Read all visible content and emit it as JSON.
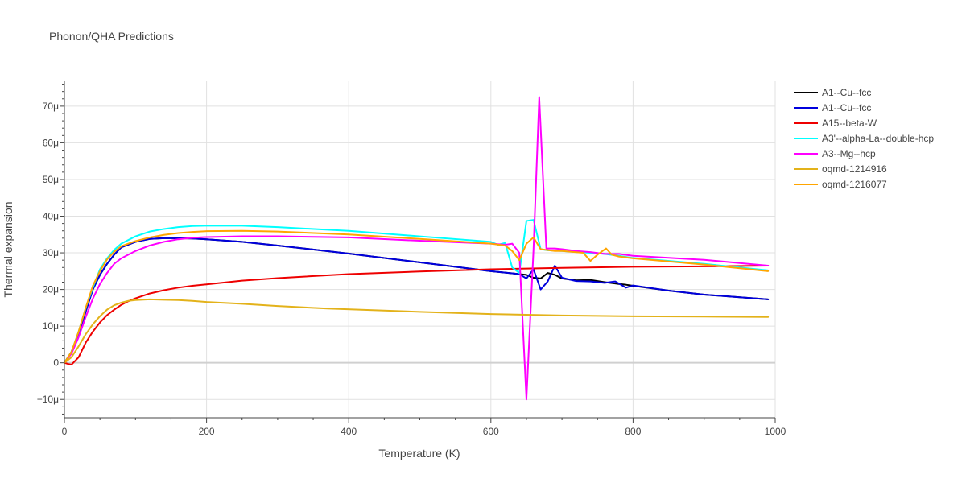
{
  "chart_data": {
    "type": "line",
    "title": "Phonon/QHA Predictions",
    "xlabel": "Temperature (K)",
    "ylabel": "Thermal expansion",
    "xlim": [
      0,
      1000
    ],
    "ylim": [
      -1.5e-05,
      7.7e-05
    ],
    "grid": true,
    "legend_position": "right",
    "x_ticks": [
      {
        "value": 0,
        "label": "0"
      },
      {
        "value": 200,
        "label": "200"
      },
      {
        "value": 400,
        "label": "400"
      },
      {
        "value": 600,
        "label": "600"
      },
      {
        "value": 800,
        "label": "800"
      },
      {
        "value": 1000,
        "label": "1000"
      }
    ],
    "y_ticks": [
      {
        "value": -1e-05,
        "label": "−10μ"
      },
      {
        "value": 0,
        "label": "0"
      },
      {
        "value": 1e-05,
        "label": "10μ"
      },
      {
        "value": 2e-05,
        "label": "20μ"
      },
      {
        "value": 3e-05,
        "label": "30μ"
      },
      {
        "value": 4e-05,
        "label": "40μ"
      },
      {
        "value": 5e-05,
        "label": "50μ"
      },
      {
        "value": 6e-05,
        "label": "60μ"
      },
      {
        "value": 7e-05,
        "label": "70μ"
      }
    ],
    "series": [
      {
        "name": "A1--Cu--fcc",
        "color": "#000000",
        "x": [
          0,
          10,
          20,
          30,
          40,
          50,
          60,
          70,
          80,
          100,
          120,
          140,
          160,
          180,
          200,
          250,
          300,
          400,
          500,
          600,
          640,
          650,
          660,
          670,
          680,
          690,
          700,
          720,
          740,
          760,
          780,
          790,
          800,
          850,
          900,
          990
        ],
        "y": [
          0,
          3e-06,
          8e-06,
          1.4e-05,
          2e-05,
          2.4e-05,
          2.7e-05,
          2.95e-05,
          3.15e-05,
          3.3e-05,
          3.38e-05,
          3.4e-05,
          3.4e-05,
          3.39e-05,
          3.37e-05,
          3.3e-05,
          3.2e-05,
          2.98e-05,
          2.74e-05,
          2.5e-05,
          2.42e-05,
          2.4e-05,
          2.32e-05,
          2.3e-05,
          2.45e-05,
          2.4e-05,
          2.3e-05,
          2.25e-05,
          2.26e-05,
          2.2e-05,
          2.15e-05,
          2.13e-05,
          2.1e-05,
          1.97e-05,
          1.86e-05,
          1.73e-05
        ]
      },
      {
        "name": "A1--Cu--fcc",
        "color": "#0000dd",
        "x": [
          0,
          10,
          20,
          30,
          40,
          50,
          60,
          70,
          80,
          100,
          120,
          140,
          160,
          180,
          200,
          250,
          300,
          400,
          500,
          600,
          640,
          650,
          660,
          670,
          680,
          690,
          700,
          720,
          740,
          760,
          775,
          790,
          800,
          850,
          900,
          990
        ],
        "y": [
          0,
          3e-06,
          8e-06,
          1.4e-05,
          2e-05,
          2.4e-05,
          2.7e-05,
          2.95e-05,
          3.15e-05,
          3.3e-05,
          3.38e-05,
          3.4e-05,
          3.4e-05,
          3.39e-05,
          3.37e-05,
          3.3e-05,
          3.2e-05,
          2.98e-05,
          2.74e-05,
          2.5e-05,
          2.42e-05,
          2.3e-05,
          2.55e-05,
          2e-05,
          2.22e-05,
          2.65e-05,
          2.32e-05,
          2.23e-05,
          2.22e-05,
          2.18e-05,
          2.22e-05,
          2.05e-05,
          2.11e-05,
          1.97e-05,
          1.86e-05,
          1.73e-05
        ]
      },
      {
        "name": "A15--beta-W",
        "color": "#ee0000",
        "x": [
          0,
          5,
          10,
          20,
          30,
          40,
          50,
          60,
          70,
          80,
          90,
          100,
          120,
          140,
          160,
          180,
          200,
          250,
          300,
          400,
          500,
          600,
          700,
          800,
          900,
          990
        ],
        "y": [
          0,
          -3e-07,
          -5e-07,
          1.5e-06,
          5.5e-06,
          8.5e-06,
          1.1e-05,
          1.3e-05,
          1.45e-05,
          1.58e-05,
          1.68e-05,
          1.76e-05,
          1.89e-05,
          1.98e-05,
          2.05e-05,
          2.1e-05,
          2.14e-05,
          2.24e-05,
          2.31e-05,
          2.42e-05,
          2.49e-05,
          2.55e-05,
          2.59e-05,
          2.62e-05,
          2.63e-05,
          2.65e-05
        ]
      },
      {
        "name": "A3'--alpha-La--double-hcp",
        "color": "#00ffff",
        "x": [
          0,
          10,
          20,
          30,
          40,
          50,
          60,
          70,
          80,
          100,
          120,
          140,
          160,
          180,
          200,
          250,
          300,
          400,
          500,
          600,
          610,
          620,
          630,
          640,
          650,
          660,
          670,
          680,
          700,
          720,
          740,
          760,
          780,
          800,
          900,
          990
        ],
        "y": [
          0,
          3e-06,
          8.5e-06,
          1.5e-05,
          2.05e-05,
          2.55e-05,
          2.85e-05,
          3.08e-05,
          3.25e-05,
          3.45e-05,
          3.58e-05,
          3.65e-05,
          3.7e-05,
          3.73e-05,
          3.74e-05,
          3.74e-05,
          3.7e-05,
          3.6e-05,
          3.45e-05,
          3.3e-05,
          3.22e-05,
          3.27e-05,
          2.6e-05,
          2.45e-05,
          3.87e-05,
          3.9e-05,
          3.1e-05,
          3.07e-05,
          3.05e-05,
          3.02e-05,
          3e-05,
          2.97e-05,
          2.92e-05,
          2.86e-05,
          2.7e-05,
          2.52e-05
        ]
      },
      {
        "name": "A3--Mg--hcp",
        "color": "#ff00ff",
        "x": [
          0,
          10,
          20,
          30,
          40,
          50,
          60,
          70,
          80,
          100,
          120,
          140,
          160,
          180,
          200,
          250,
          300,
          400,
          500,
          600,
          620,
          630,
          640,
          650,
          660,
          668,
          678,
          690,
          700,
          720,
          740,
          760,
          780,
          800,
          900,
          990
        ],
        "y": [
          0,
          2.5e-06,
          7e-06,
          1.25e-05,
          1.75e-05,
          2.15e-05,
          2.45e-05,
          2.7e-05,
          2.85e-05,
          3.05e-05,
          3.2e-05,
          3.3e-05,
          3.37e-05,
          3.41e-05,
          3.43e-05,
          3.45e-05,
          3.45e-05,
          3.42e-05,
          3.33e-05,
          3.25e-05,
          3.22e-05,
          3.25e-05,
          3e-05,
          -1e-05,
          3.1e-05,
          7.25e-05,
          3.12e-05,
          3.12e-05,
          3.1e-05,
          3.05e-05,
          3.02e-05,
          2.97e-05,
          2.97e-05,
          2.92e-05,
          2.81e-05,
          2.65e-05
        ]
      },
      {
        "name": "oqmd-1214916",
        "color": "#e3b21a",
        "x": [
          0,
          10,
          20,
          30,
          40,
          50,
          60,
          70,
          80,
          90,
          100,
          120,
          140,
          160,
          180,
          200,
          250,
          300,
          370,
          500,
          600,
          700,
          800,
          900,
          990
        ],
        "y": [
          0,
          1.5e-06,
          4.5e-06,
          7.8e-06,
          1.05e-05,
          1.27e-05,
          1.45e-05,
          1.57e-05,
          1.64e-05,
          1.69e-05,
          1.71e-05,
          1.73e-05,
          1.72e-05,
          1.71e-05,
          1.69e-05,
          1.66e-05,
          1.61e-05,
          1.55e-05,
          1.48e-05,
          1.39e-05,
          1.33e-05,
          1.29e-05,
          1.27e-05,
          1.26e-05,
          1.25e-05
        ]
      },
      {
        "name": "oqmd-1216077",
        "color": "#ffa500",
        "x": [
          0,
          10,
          20,
          30,
          40,
          50,
          60,
          70,
          80,
          100,
          120,
          140,
          160,
          180,
          200,
          250,
          300,
          400,
          500,
          600,
          620,
          630,
          640,
          650,
          660,
          670,
          690,
          700,
          730,
          740,
          750,
          762,
          770,
          780,
          800,
          900,
          990
        ],
        "y": [
          0,
          3e-06,
          8.5e-06,
          1.5e-05,
          2.1e-05,
          2.5e-05,
          2.82e-05,
          3.03e-05,
          3.18e-05,
          3.32e-05,
          3.42e-05,
          3.49e-05,
          3.54e-05,
          3.57e-05,
          3.59e-05,
          3.6e-05,
          3.58e-05,
          3.5e-05,
          3.38e-05,
          3.25e-05,
          3.2e-05,
          3.05e-05,
          2.8e-05,
          3.25e-05,
          3.42e-05,
          3.1e-05,
          3.05e-05,
          3.05e-05,
          3e-05,
          2.78e-05,
          2.95e-05,
          3.12e-05,
          2.95e-05,
          2.9e-05,
          2.85e-05,
          2.68e-05,
          2.5e-05
        ]
      }
    ]
  }
}
